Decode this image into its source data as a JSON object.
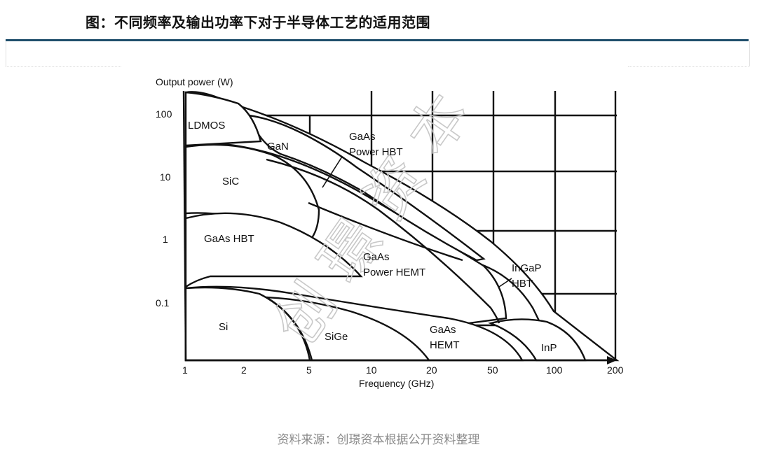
{
  "title": "图：不同频率及输出功率下对于半导体工艺的适用范围",
  "source": "资料来源：创璟资本根据公开资料整理",
  "watermark": "创璟资本",
  "chart_data": {
    "type": "area",
    "ylabel": "Output power (W)",
    "xlabel": "Frequency (GHz)",
    "x_scale": "log",
    "y_scale": "log",
    "x_ticks": [
      "1",
      "2",
      "5",
      "10",
      "20",
      "50",
      "100",
      "200"
    ],
    "y_ticks": [
      "100",
      "10",
      "1",
      "0.1"
    ],
    "xlim": [
      1,
      200
    ],
    "ylim": [
      0.01,
      200
    ],
    "regions": [
      {
        "label": "LDMOS"
      },
      {
        "label": "GaN"
      },
      {
        "label": "GaAs Power HBT"
      },
      {
        "label": "SiC"
      },
      {
        "label": "GaAs HBT"
      },
      {
        "label": "GaAs Power HEMT"
      },
      {
        "label": "InGaP HBT"
      },
      {
        "label": "Si"
      },
      {
        "label": "SiGe"
      },
      {
        "label": "GaAs HEMT"
      },
      {
        "label": "InP"
      }
    ],
    "label_lines": {
      "gaas_power_hbt": [
        "GaAs",
        "Power HBT"
      ],
      "gaas_hbt": "GaAs HBT",
      "gaas_power_hemt": [
        "GaAs",
        "Power HEMT"
      ],
      "ingap_hbt": [
        "InGaP",
        "HBT"
      ],
      "gaas_hemt": [
        "GaAs",
        "HEMT"
      ]
    }
  }
}
